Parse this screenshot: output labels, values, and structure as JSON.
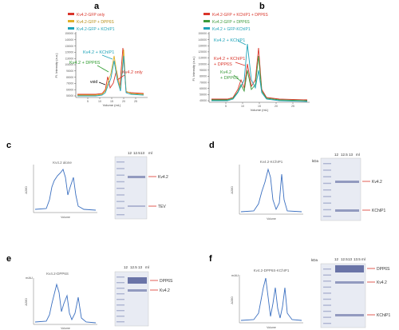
{
  "panels": {
    "a": {
      "letter": "a",
      "legend": [
        "Kv4.2-GFP only",
        "Kv4.2-GFP + DPP6S",
        "Kv4.2-GFP + KChIP1"
      ],
      "legend_colors": [
        "#d9352a",
        "#e0b12a",
        "#1ea3b8"
      ],
      "xlabel": "Volume (mL)",
      "ylabel": "Fl. Intensity (a.u.)",
      "yticks": [
        "150000",
        "140000",
        "130000",
        "120000",
        "110000",
        "100000",
        "90000",
        "80000",
        "70000",
        "60000",
        "50000"
      ],
      "xticks": [
        "5",
        "10",
        "15",
        "20",
        "25"
      ],
      "annotations": {
        "kchip": "Kv4.2 + KChIP1",
        "dpp6s": "Kv4.2 + DPP6S",
        "void": "void",
        "only": "Kv4.2 only"
      }
    },
    "b": {
      "letter": "b",
      "legend": [
        "Kv4.2-GFP + KChIP1 + DPP6S",
        "Kv4.2-GFP + DPP6S",
        "Kv4.2 + GFP-KChIP1"
      ],
      "legend_colors": [
        "#d9352a",
        "#3a9a3a",
        "#1ea3b8"
      ],
      "xlabel": "Volume (mL)",
      "ylabel": "Fl. Intensity (a.u.)",
      "yticks": [
        "150000",
        "140000",
        "130000",
        "120000",
        "110000",
        "100000",
        "90000",
        "80000",
        "70000",
        "60000",
        "50000",
        "40000"
      ],
      "xticks": [
        "5",
        "10",
        "15",
        "20",
        "25"
      ],
      "annotations": {
        "kchip": "Kv4.2 + KChIP1",
        "triple_1": "Kv4.2 + KChIP1",
        "triple_2": "+ DPP6S",
        "dpp_1": "Kv4.2",
        "dpp_2": "+ DPP6S"
      }
    },
    "c": {
      "letter": "c",
      "trace_title": "Kv4.2 alone",
      "ylabel": "A280",
      "xlabel": "Volume",
      "gel_lanes": [
        "12",
        "12.5",
        "13",
        "ml"
      ],
      "gel_labels": [
        "Kv4.2",
        "TEV"
      ]
    },
    "d": {
      "letter": "d",
      "trace_title": "Kv4.2-KChIP1",
      "ylabel": "A280",
      "xlabel": "Volume",
      "kda": "kDa",
      "gel_lanes": [
        "12",
        "12.5",
        "13",
        "ml"
      ],
      "gel_labels": [
        "Kv4.2",
        "KChIP1"
      ]
    },
    "e": {
      "letter": "e",
      "trace_title": "Kv4.2-DPP6S",
      "ylabel": "A280",
      "xlabel": "Volume",
      "yunit": "mAU",
      "gel_lanes": [
        "12",
        "12.5",
        "13",
        "ml"
      ],
      "gel_labels": [
        "DPP6S",
        "Kv4.2"
      ]
    },
    "f": {
      "letter": "f",
      "trace_title": "Kv4.2-DPP6S-KChIP1",
      "ylabel": "A280",
      "xlabel": "Volume",
      "yunit": "mAU",
      "kda": "kDa",
      "gel_lanes": [
        "12",
        "12.5",
        "13",
        "13.5",
        "ml"
      ],
      "gel_labels": [
        "DPP6S",
        "Kv4.2",
        "KChIP1"
      ]
    }
  }
}
